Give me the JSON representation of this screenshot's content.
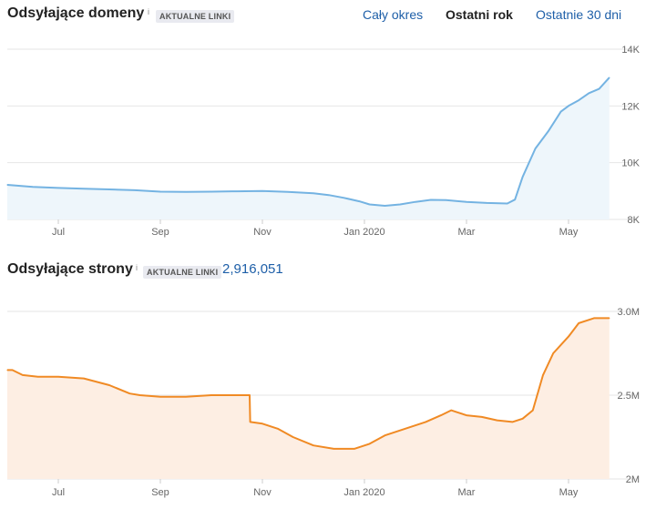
{
  "header": {
    "title": "Odsyłające domeny",
    "info": "i",
    "badge": "AKTUALNE LINKI",
    "ranges": [
      {
        "label": "Cały okres",
        "active": false
      },
      {
        "label": "Ostatni rok",
        "active": true
      },
      {
        "label": "Ostatnie 30 dni",
        "active": false
      }
    ]
  },
  "pages_header": {
    "title": "Odsyłające strony",
    "info": "i",
    "badge": "AKTUALNE LINKI",
    "total": "2,916,051"
  },
  "chart_data": [
    {
      "type": "area",
      "title": "Odsyłające domeny",
      "color": "#74b3e2",
      "fill": "#eef6fb",
      "x_ticks": [
        "Jul",
        "Sep",
        "Nov",
        "Jan 2020",
        "Mar",
        "May"
      ],
      "x_tick_pos": [
        1.0,
        3.0,
        5.0,
        7.0,
        9.0,
        11.0
      ],
      "y_ticks": [
        {
          "value": 8000,
          "label": "8K"
        },
        {
          "value": 10000,
          "label": "10K"
        },
        {
          "value": 12000,
          "label": "12K"
        },
        {
          "value": 14000,
          "label": "14K"
        }
      ],
      "ylim": [
        8000,
        14000
      ],
      "xlim": [
        0,
        12
      ],
      "x": [
        0.0,
        0.5,
        1.0,
        1.5,
        2.0,
        2.5,
        3.0,
        3.5,
        4.0,
        4.5,
        5.0,
        5.5,
        6.0,
        6.3,
        6.6,
        6.9,
        7.1,
        7.4,
        7.7,
        8.0,
        8.3,
        8.6,
        9.0,
        9.4,
        9.8,
        9.95,
        10.1,
        10.35,
        10.6,
        10.85,
        11.0,
        11.2,
        11.4,
        11.6,
        11.8
      ],
      "values": [
        9220,
        9150,
        9110,
        9080,
        9060,
        9030,
        8980,
        8970,
        8980,
        8990,
        9000,
        8970,
        8920,
        8860,
        8760,
        8640,
        8530,
        8480,
        8530,
        8620,
        8690,
        8680,
        8620,
        8580,
        8560,
        8700,
        9500,
        10500,
        11100,
        11800,
        12000,
        12200,
        12450,
        12600,
        13000
      ]
    },
    {
      "type": "area",
      "title": "Odsyłające strony",
      "color": "#f08a24",
      "fill": "#fdeee3",
      "x_ticks": [
        "Jul",
        "Sep",
        "Nov",
        "Jan 2020",
        "Mar",
        "May"
      ],
      "x_tick_pos": [
        1.0,
        3.0,
        5.0,
        7.0,
        9.0,
        11.0
      ],
      "y_ticks": [
        {
          "value": 2000000,
          "label": "2M"
        },
        {
          "value": 2500000,
          "label": "2.5M"
        },
        {
          "value": 3000000,
          "label": "3.0M"
        }
      ],
      "ylim": [
        2000000,
        3000000
      ],
      "xlim": [
        0,
        12
      ],
      "x": [
        0.0,
        0.1,
        0.3,
        0.6,
        1.0,
        1.5,
        2.0,
        2.4,
        2.6,
        3.0,
        3.5,
        4.0,
        4.4,
        4.75,
        4.76,
        5.0,
        5.3,
        5.6,
        6.0,
        6.4,
        6.8,
        7.1,
        7.4,
        7.8,
        8.2,
        8.5,
        8.7,
        8.8,
        9.0,
        9.3,
        9.6,
        9.9,
        10.1,
        10.3,
        10.5,
        10.7,
        11.0,
        11.2,
        11.5,
        11.8
      ],
      "values": [
        2650000,
        2650000,
        2620000,
        2610000,
        2610000,
        2600000,
        2560000,
        2510000,
        2500000,
        2490000,
        2490000,
        2500000,
        2500000,
        2500000,
        2340000,
        2330000,
        2300000,
        2250000,
        2200000,
        2180000,
        2180000,
        2210000,
        2260000,
        2300000,
        2340000,
        2380000,
        2410000,
        2400000,
        2380000,
        2370000,
        2350000,
        2340000,
        2360000,
        2410000,
        2620000,
        2750000,
        2850000,
        2930000,
        2960000,
        2960000
      ]
    }
  ]
}
